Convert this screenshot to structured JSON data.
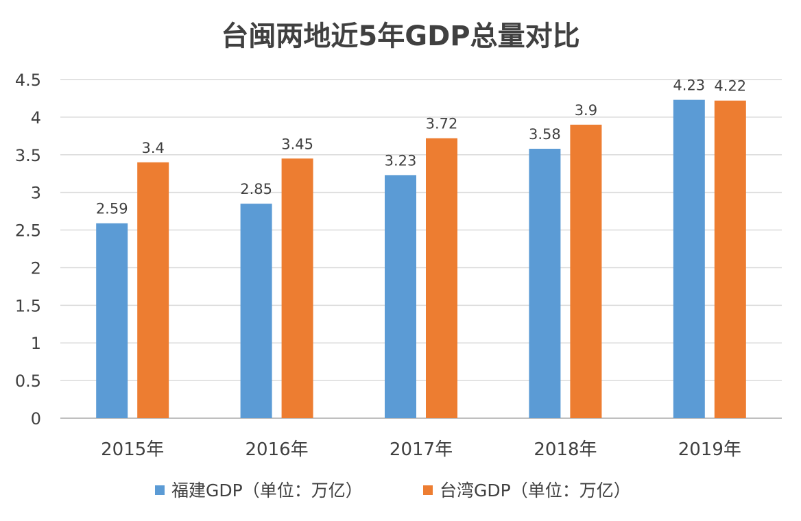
{
  "chart_data": {
    "type": "bar",
    "title": "台闽两地近5年GDP总量对比",
    "categories": [
      "2015年",
      "2016年",
      "2017年",
      "2018年",
      "2019年"
    ],
    "series": [
      {
        "name": "福建GDP（单位：万亿）",
        "color": "#5b9bd5",
        "values": [
          2.59,
          2.85,
          3.23,
          3.58,
          4.23
        ],
        "labels": [
          "2.59",
          "2.85",
          "3.23",
          "3.58",
          "4.23"
        ]
      },
      {
        "name": "台湾GDP（单位：万亿）",
        "color": "#ed7d31",
        "values": [
          3.4,
          3.45,
          3.72,
          3.9,
          4.22
        ],
        "labels": [
          "3.4",
          "3.45",
          "3.72",
          "3.9",
          "4.22"
        ]
      }
    ],
    "yticks": [
      "0",
      "0.5",
      "1",
      "1.5",
      "2",
      "2.5",
      "3",
      "3.5",
      "4",
      "4.5"
    ],
    "ylim": [
      0,
      4.5
    ],
    "grid": true,
    "legend_position": "bottom"
  }
}
